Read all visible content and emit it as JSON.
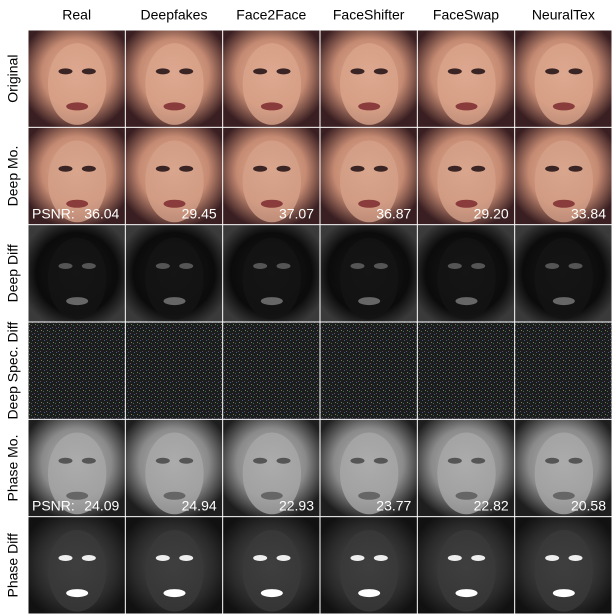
{
  "columns": [
    "Real",
    "Deepfakes",
    "Face2Face",
    "FaceShifter",
    "FaceSwap",
    "NeuralTex"
  ],
  "rows": [
    "Original",
    "Deep Mo.",
    "Deep Diff",
    "Deep Spec. Diff",
    "Phase Mo.",
    "Phase Diff"
  ],
  "psnr": [
    {
      "row": "Deep Mo.",
      "label": "PSNR:",
      "values": [
        "36.04",
        "29.45",
        "37.07",
        "36.87",
        "29.20",
        "33.84"
      ]
    },
    {
      "row": "Phase Mo.",
      "label": "PSNR:",
      "values": [
        "24.09",
        "24.94",
        "22.93",
        "23.77",
        "22.82",
        "20.58"
      ]
    }
  ]
}
